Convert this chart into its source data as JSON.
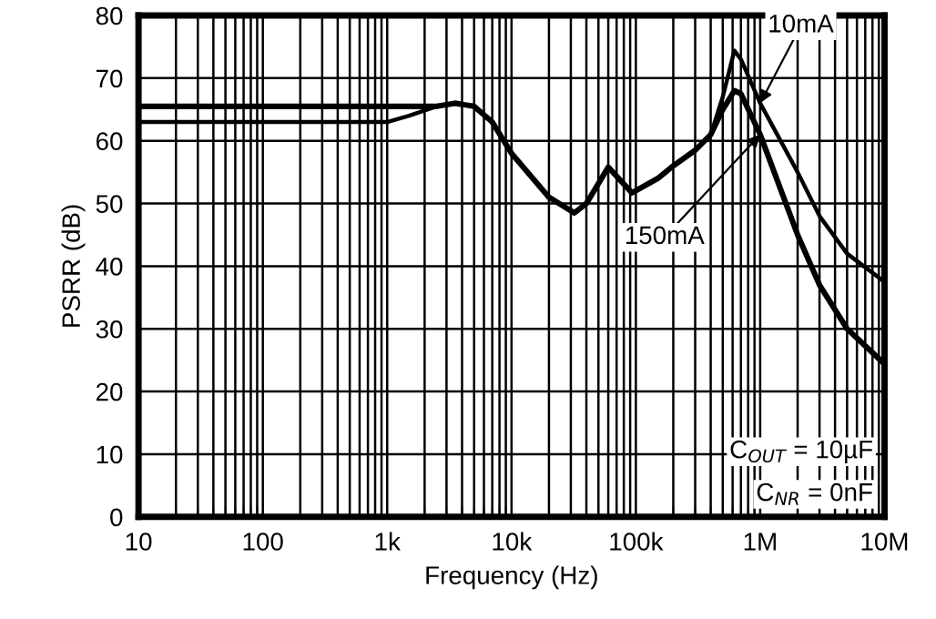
{
  "chart_data": {
    "type": "line",
    "xlabel": "Frequency (Hz)",
    "ylabel": "PSRR (dB)",
    "log": "x",
    "xlim": [
      10,
      10000000
    ],
    "ylim": [
      0,
      80
    ],
    "xticks": [
      10,
      100,
      {
        "value": 1000,
        "label": "1k"
      },
      {
        "value": 10000,
        "label": "10k"
      },
      {
        "value": 100000,
        "label": "100k"
      },
      {
        "value": 1000000,
        "label": "1M"
      },
      {
        "value": 10000000,
        "label": "10M"
      }
    ],
    "yticks": [
      0,
      10,
      20,
      30,
      40,
      50,
      60,
      70,
      80
    ],
    "grid": true,
    "line_style": "solid",
    "x": [
      10,
      1000,
      1500,
      2500,
      3500,
      5000,
      7000,
      10000,
      20000,
      32000,
      40000,
      60000,
      93000,
      150000,
      200000,
      300000,
      400000,
      500000,
      620000,
      700000,
      1000000,
      2000000,
      3000000,
      5000000,
      10000000
    ],
    "series": [
      {
        "name": "10mA",
        "color": "#000000",
        "values": [
          63,
          63,
          64,
          65.5,
          66,
          65.5,
          63,
          58,
          51,
          48.5,
          50,
          55.8,
          51.7,
          54,
          56,
          58.5,
          61,
          67,
          74.4,
          73,
          66,
          55,
          48,
          42,
          37.5
        ]
      },
      {
        "name": "150mA",
        "color": "#000000",
        "values": [
          65.5,
          65.5,
          65.5,
          65.5,
          66,
          65.5,
          63,
          58,
          51,
          48.5,
          50,
          55.8,
          51.7,
          54,
          56,
          58.5,
          61,
          65,
          68,
          67.5,
          61,
          45,
          37,
          30,
          24.4
        ]
      }
    ],
    "annotations": [
      "C$_{OUT}$ = 10µF",
      "C$_{NR}$ = 0nF"
    ]
  }
}
